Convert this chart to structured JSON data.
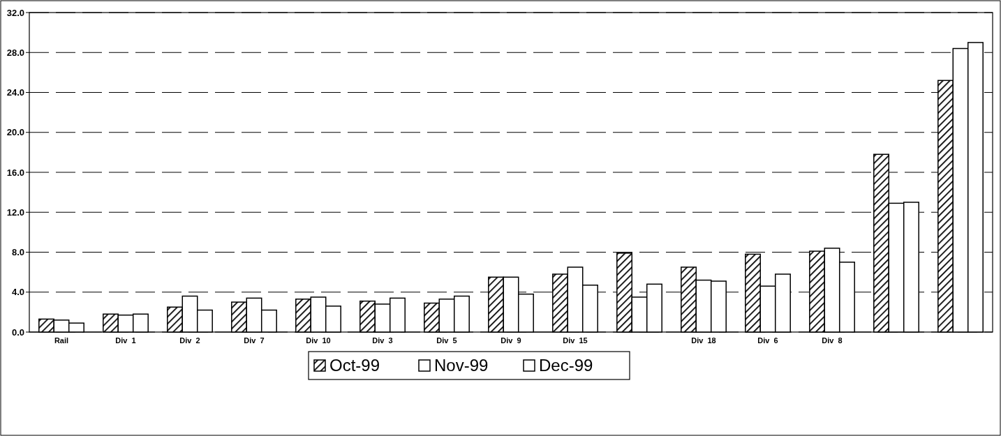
{
  "chart_data": {
    "type": "bar",
    "categories": [
      "Rail",
      "Div  1",
      "Div  2",
      "Div  7",
      "Div  10",
      "Div  3",
      "Div  5",
      "Div  9",
      "Div  15",
      null,
      "Div  18",
      "Div  6",
      "Div  8",
      null,
      null
    ],
    "series": [
      {
        "name": "Oct-99",
        "color": "#000000",
        "values": [
          1.3,
          1.8,
          2.5,
          3.0,
          3.3,
          3.1,
          2.9,
          5.5,
          5.8,
          7.9,
          6.5,
          7.8,
          8.1,
          17.8,
          25.2
        ]
      },
      {
        "name": "Nov-99",
        "color": "#ffffff",
        "values": [
          1.2,
          1.7,
          3.6,
          3.4,
          3.5,
          2.8,
          3.3,
          5.5,
          6.5,
          3.5,
          5.2,
          4.6,
          8.4,
          12.9,
          28.4
        ]
      },
      {
        "name": "Dec-99",
        "color": "#ffffff",
        "values": [
          0.9,
          1.8,
          2.2,
          2.2,
          2.6,
          3.4,
          3.6,
          3.8,
          4.7,
          4.8,
          5.1,
          5.8,
          7.0,
          13.0,
          29.0
        ]
      }
    ],
    "ylim": [
      0,
      32
    ],
    "yticks": [
      {
        "value": 0,
        "label": "0.0"
      },
      {
        "value": 4,
        "label": "4.0"
      },
      {
        "value": 8,
        "label": "8.0"
      },
      {
        "value": 12,
        "label": "12.0"
      },
      {
        "value": 16,
        "label": "16.0"
      },
      {
        "value": 20,
        "label": "20.0"
      },
      {
        "value": 24,
        "label": "24.0"
      },
      {
        "value": 28,
        "label": "28.0"
      },
      {
        "value": 32,
        "label": "32.0"
      }
    ],
    "grid": "y",
    "line_style": "dashed",
    "legend": "bottom"
  }
}
